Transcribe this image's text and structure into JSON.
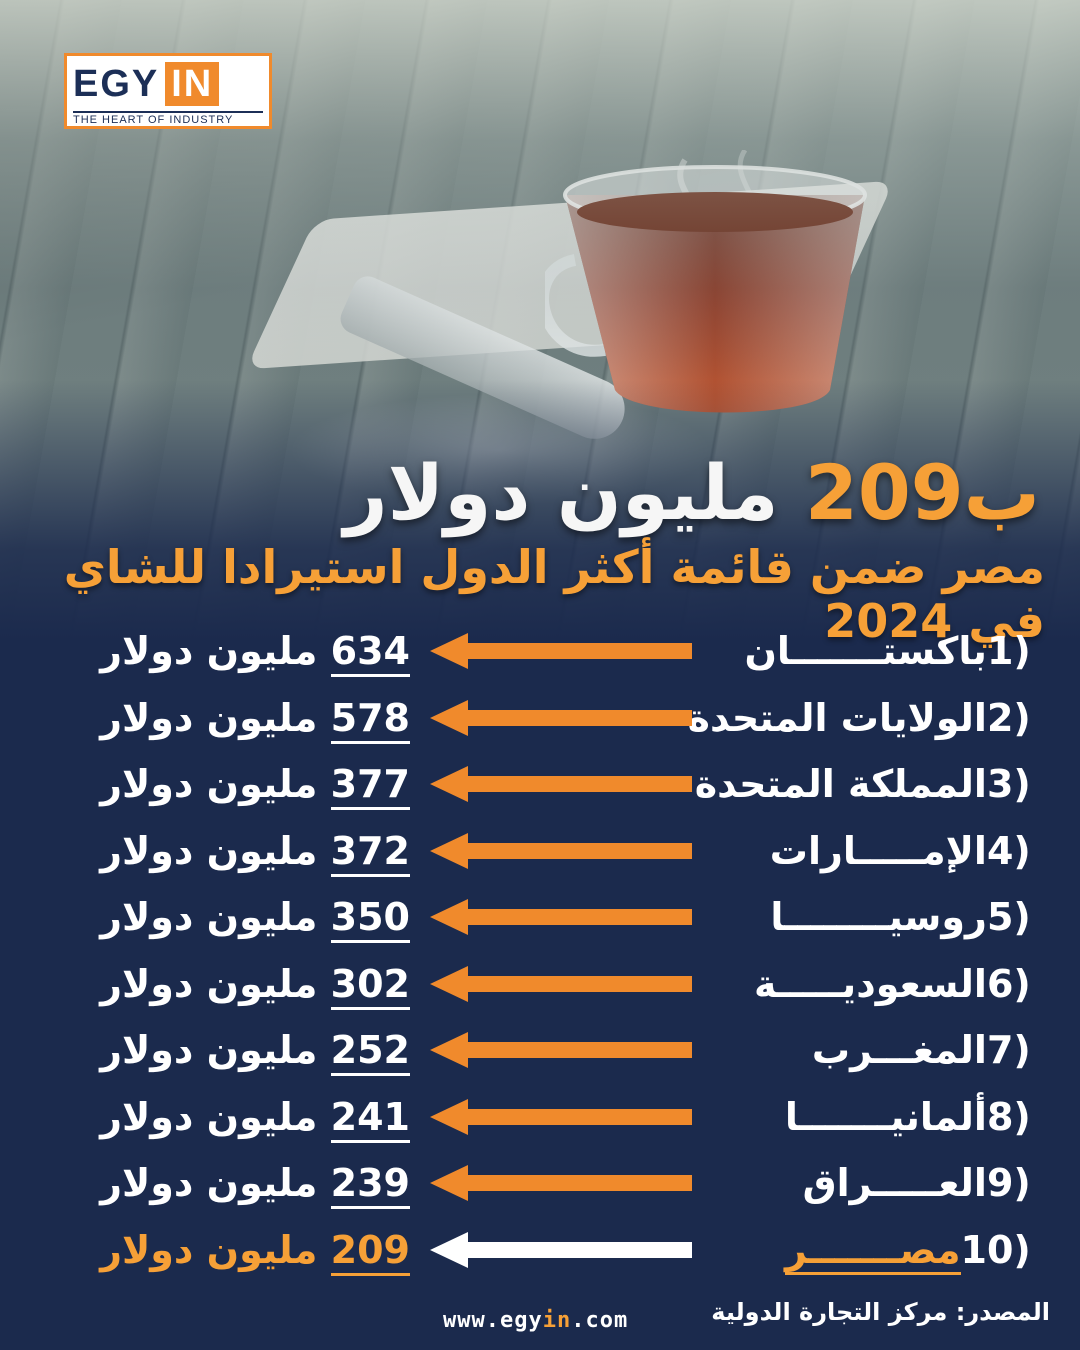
{
  "brand": {
    "logo_left": "EGY",
    "logo_right": "IN",
    "tagline": "THE HEART OF INDUSTRY",
    "website_prefix": "www.egy",
    "website_highlight": "in",
    "website_suffix": ".com"
  },
  "header": {
    "title_number": "ب209",
    "title_rest": " مليون دولار",
    "subtitle": "مصر ضمن قائمة أكثر الدول استيرادا للشاي في 2024"
  },
  "chart_data": {
    "type": "table",
    "title": "مصر ضمن قائمة أكثر الدول استيرادا للشاي في 2024",
    "unit": "مليون دولار",
    "rows": [
      {
        "rank": "1)",
        "country": "باكستـــــــان",
        "value": 634,
        "highlight": false
      },
      {
        "rank": "2)",
        "country": "الولايات المتحدة",
        "value": 578,
        "highlight": false
      },
      {
        "rank": "3)",
        "country": "المملكة المتحدة",
        "value": 377,
        "highlight": false
      },
      {
        "rank": "4)",
        "country": "الإمـــــارات",
        "value": 372,
        "highlight": false
      },
      {
        "rank": "5)",
        "country": "روسيــــــــا",
        "value": 350,
        "highlight": false
      },
      {
        "rank": "6)",
        "country": "السعوديـــــة",
        "value": 302,
        "highlight": false
      },
      {
        "rank": "7)",
        "country": "المغـــرب",
        "value": 252,
        "highlight": false
      },
      {
        "rank": "8)",
        "country": "ألمانيـــــــا",
        "value": 241,
        "highlight": false
      },
      {
        "rank": "9)",
        "country": "العـــــراق",
        "value": 239,
        "highlight": false
      },
      {
        "rank": "10)",
        "country": "مصـــــــر",
        "value": 209,
        "highlight": true
      }
    ],
    "colors": {
      "arrow": "#f08a2c",
      "highlight_arrow": "#ffffff",
      "highlight_text": "#f6a037"
    }
  },
  "footer": {
    "source": "المصدر: مركز التجارة الدولية"
  }
}
